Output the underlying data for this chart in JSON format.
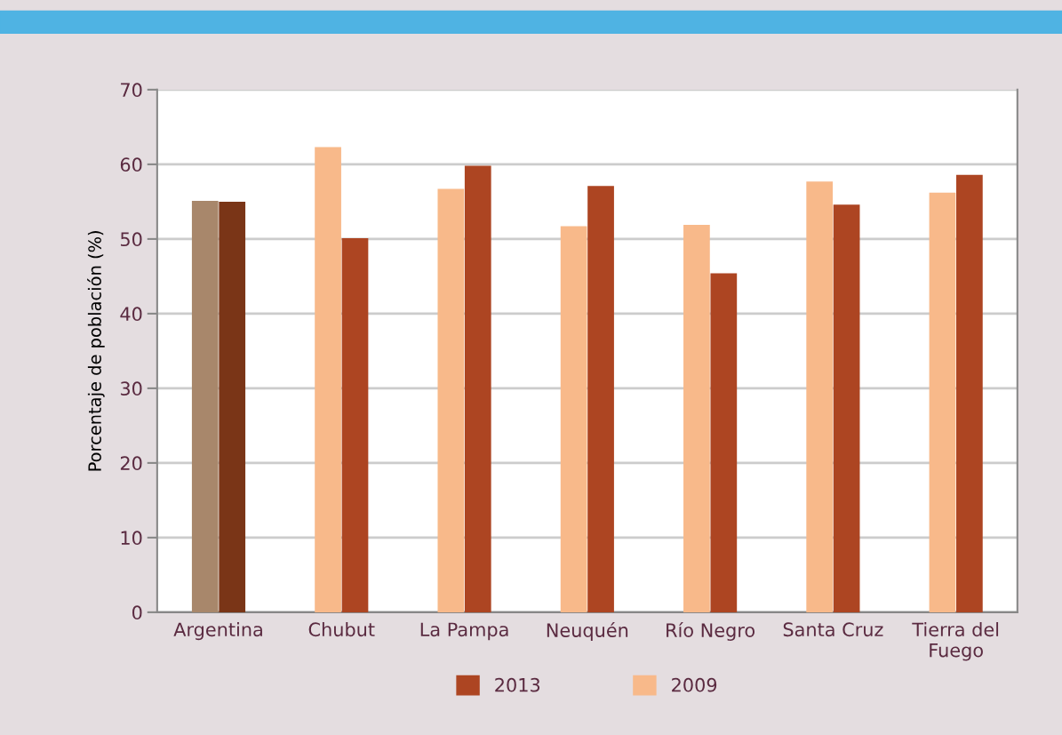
{
  "chart_data": {
    "type": "bar",
    "ylabel": "Porcentaje de población (%)",
    "categories": [
      "Argentina",
      "Chubut",
      "La Pampa",
      "Neuquén",
      "Río Negro",
      "Santa Cruz",
      "Tierra del\nFuego"
    ],
    "series": [
      {
        "name": "2009",
        "color": "#f8b98a",
        "colors": [
          "#a8876b",
          "#f8b98a",
          "#f8b98a",
          "#f8b98a",
          "#f8b98a",
          "#f8b98a",
          "#f8b98a"
        ],
        "values": [
          55.1,
          62.3,
          56.7,
          51.7,
          51.9,
          57.7,
          56.2
        ]
      },
      {
        "name": "2013",
        "color": "#ad4522",
        "colors": [
          "#7a3517",
          "#ad4522",
          "#ad4522",
          "#ad4522",
          "#ad4522",
          "#ad4522",
          "#ad4522"
        ],
        "values": [
          55.0,
          50.1,
          59.8,
          57.1,
          45.4,
          54.6,
          58.6
        ]
      }
    ],
    "ylim": [
      0,
      70
    ],
    "yticks": [
      0,
      10,
      20,
      30,
      40,
      50,
      60,
      70
    ],
    "grid": "y",
    "legend": "bottom"
  }
}
